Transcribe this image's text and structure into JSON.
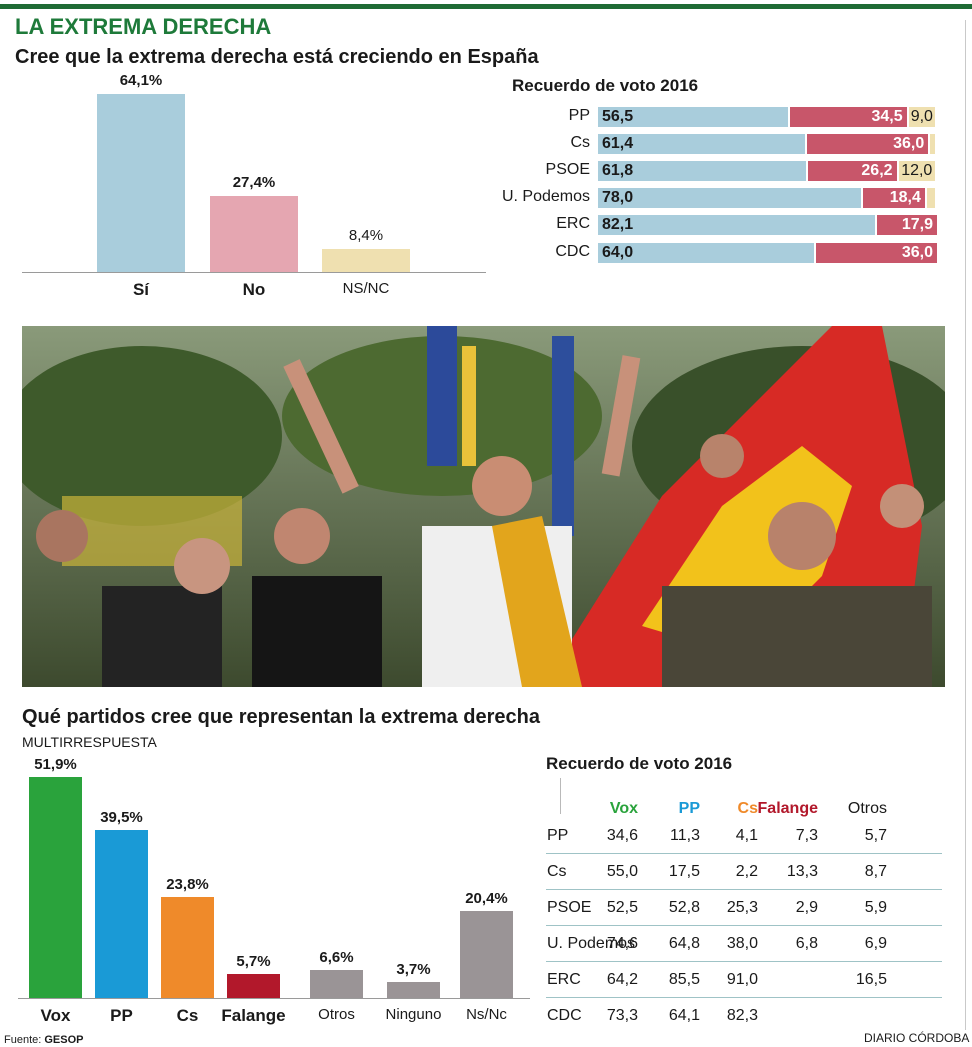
{
  "header": "LA EXTREMA DERECHA",
  "section1": {
    "title": "Cree que la extrema derecha está creciendo en España",
    "bars": [
      {
        "label": "Sí",
        "value": 64.1,
        "display": "64,1%",
        "color": "#a9cddc"
      },
      {
        "label": "No",
        "value": 27.4,
        "display": "27,4%",
        "color": "#e5a6b1"
      },
      {
        "label": "NS/NC",
        "value": 8.4,
        "display": "8,4%",
        "color": "#efe0b0"
      }
    ]
  },
  "recuerdo1": {
    "title": "Recuerdo de voto 2016",
    "colors": {
      "si": "#a9cddc",
      "no": "#c8566a",
      "nsnc": "#efe0b0"
    },
    "rows": [
      {
        "party": "PP",
        "si": "56,5",
        "no": "34,5",
        "nsnc": "9,0",
        "v": [
          56.5,
          34.5,
          9.0
        ]
      },
      {
        "party": "Cs",
        "si": "61,4",
        "no": "36,0",
        "nsnc": "",
        "v": [
          61.4,
          36.0,
          2.6
        ]
      },
      {
        "party": "PSOE",
        "si": "61,8",
        "no": "26,2",
        "nsnc": "12,0",
        "v": [
          61.8,
          26.2,
          12.0
        ]
      },
      {
        "party": "U. Podemos",
        "si": "78,0",
        "no": "18,4",
        "nsnc": "",
        "v": [
          78.0,
          18.4,
          3.6
        ]
      },
      {
        "party": "ERC",
        "si": "82,1",
        "no": "17,9",
        "nsnc": "",
        "v": [
          82.1,
          17.9,
          0
        ]
      },
      {
        "party": "CDC",
        "si": "64,0",
        "no": "36,0",
        "nsnc": "",
        "v": [
          64.0,
          36.0,
          0
        ]
      }
    ]
  },
  "photo": {
    "alt_icon": "photo-rally-people-flags"
  },
  "section2": {
    "title": "Qué partidos cree que representan la extrema derecha",
    "subtitle": "MULTIRRESPUESTA",
    "bars": [
      {
        "label": "Vox",
        "value": 51.9,
        "display": "51,9%",
        "color": "#2aa33c",
        "bold": true
      },
      {
        "label": "PP",
        "value": 39.5,
        "display": "39,5%",
        "color": "#1a9ad6",
        "bold": true
      },
      {
        "label": "Cs",
        "value": 23.8,
        "display": "23,8%",
        "color": "#ef8a2a",
        "bold": true
      },
      {
        "label": "Falange",
        "value": 5.7,
        "display": "5,7%",
        "color": "#b2182b",
        "bold": true
      },
      {
        "label": "Otros",
        "value": 6.6,
        "display": "6,6%",
        "color": "#9a9496",
        "bold": false
      },
      {
        "label": "Ninguno",
        "value": 3.7,
        "display": "3,7%",
        "color": "#9a9496",
        "bold": false
      },
      {
        "label": "Ns/Nc",
        "value": 20.4,
        "display": "20,4%",
        "color": "#9a9496",
        "bold": false
      }
    ]
  },
  "recuerdo2": {
    "title": "Recuerdo de voto 2016",
    "columns": [
      {
        "name": "Vox",
        "color": "#2aa33c"
      },
      {
        "name": "PP",
        "color": "#1a9ad6"
      },
      {
        "name": "Cs",
        "color": "#ef8a2a"
      },
      {
        "name": "Falange",
        "color": "#b2182b"
      },
      {
        "name": "Otros",
        "color": "#1a1a1a"
      }
    ],
    "rows": [
      {
        "party": "PP",
        "values": [
          "34,6",
          "11,3",
          "4,1",
          "7,3",
          "5,7"
        ]
      },
      {
        "party": "Cs",
        "values": [
          "55,0",
          "17,5",
          "2,2",
          "13,3",
          "8,7"
        ]
      },
      {
        "party": "PSOE",
        "values": [
          "52,5",
          "52,8",
          "25,3",
          "2,9",
          "5,9"
        ]
      },
      {
        "party": "U. Podemos",
        "values": [
          "74,6",
          "64,8",
          "38,0",
          "6,8",
          "6,9"
        ]
      },
      {
        "party": "ERC",
        "values": [
          "64,2",
          "85,5",
          "91,0",
          "",
          "16,5"
        ]
      },
      {
        "party": "CDC",
        "values": [
          "73,3",
          "64,1",
          "82,3",
          "",
          ""
        ]
      }
    ]
  },
  "footer": {
    "source_label": "Fuente: ",
    "source": "GESOP",
    "brand": "DIARIO CÓRDOBA"
  },
  "chart_data": [
    {
      "type": "bar",
      "title": "Cree que la extrema derecha está creciendo en España",
      "categories": [
        "Sí",
        "No",
        "NS/NC"
      ],
      "values": [
        64.1,
        27.4,
        8.4
      ]
    },
    {
      "type": "bar",
      "title": "Recuerdo de voto 2016",
      "categories": [
        "PP",
        "Cs",
        "PSOE",
        "U. Podemos",
        "ERC",
        "CDC"
      ],
      "series": [
        {
          "values": [
            56.5,
            61.4,
            61.8,
            78.0,
            82.1,
            64.0
          ]
        },
        {
          "values": [
            34.5,
            36.0,
            26.2,
            18.4,
            17.9,
            36.0
          ]
        },
        {
          "values": [
            9.0,
            null,
            12.0,
            null,
            null,
            null
          ]
        }
      ]
    },
    {
      "type": "bar",
      "title": "Qué partidos cree que representan la extrema derecha",
      "subtitle": "MULTIRRESPUESTA",
      "categories": [
        "Vox",
        "PP",
        "Cs",
        "Falange",
        "Otros",
        "Ninguno",
        "Ns/Nc"
      ],
      "values": [
        51.9,
        39.5,
        23.8,
        5.7,
        6.6,
        3.7,
        20.4
      ]
    },
    {
      "type": "table",
      "title": "Recuerdo de voto 2016",
      "columns": [
        "Vox",
        "PP",
        "Cs",
        "Falange",
        "Otros"
      ],
      "rows": [
        "PP",
        "Cs",
        "PSOE",
        "U. Podemos",
        "ERC",
        "CDC"
      ],
      "values": [
        [
          34.6,
          11.3,
          4.1,
          7.3,
          5.7
        ],
        [
          55.0,
          17.5,
          2.2,
          13.3,
          8.7
        ],
        [
          52.5,
          52.8,
          25.3,
          2.9,
          5.9
        ],
        [
          74.6,
          64.8,
          38.0,
          6.8,
          6.9
        ],
        [
          64.2,
          85.5,
          91.0,
          null,
          16.5
        ],
        [
          73.3,
          64.1,
          82.3,
          null,
          null
        ]
      ]
    }
  ]
}
